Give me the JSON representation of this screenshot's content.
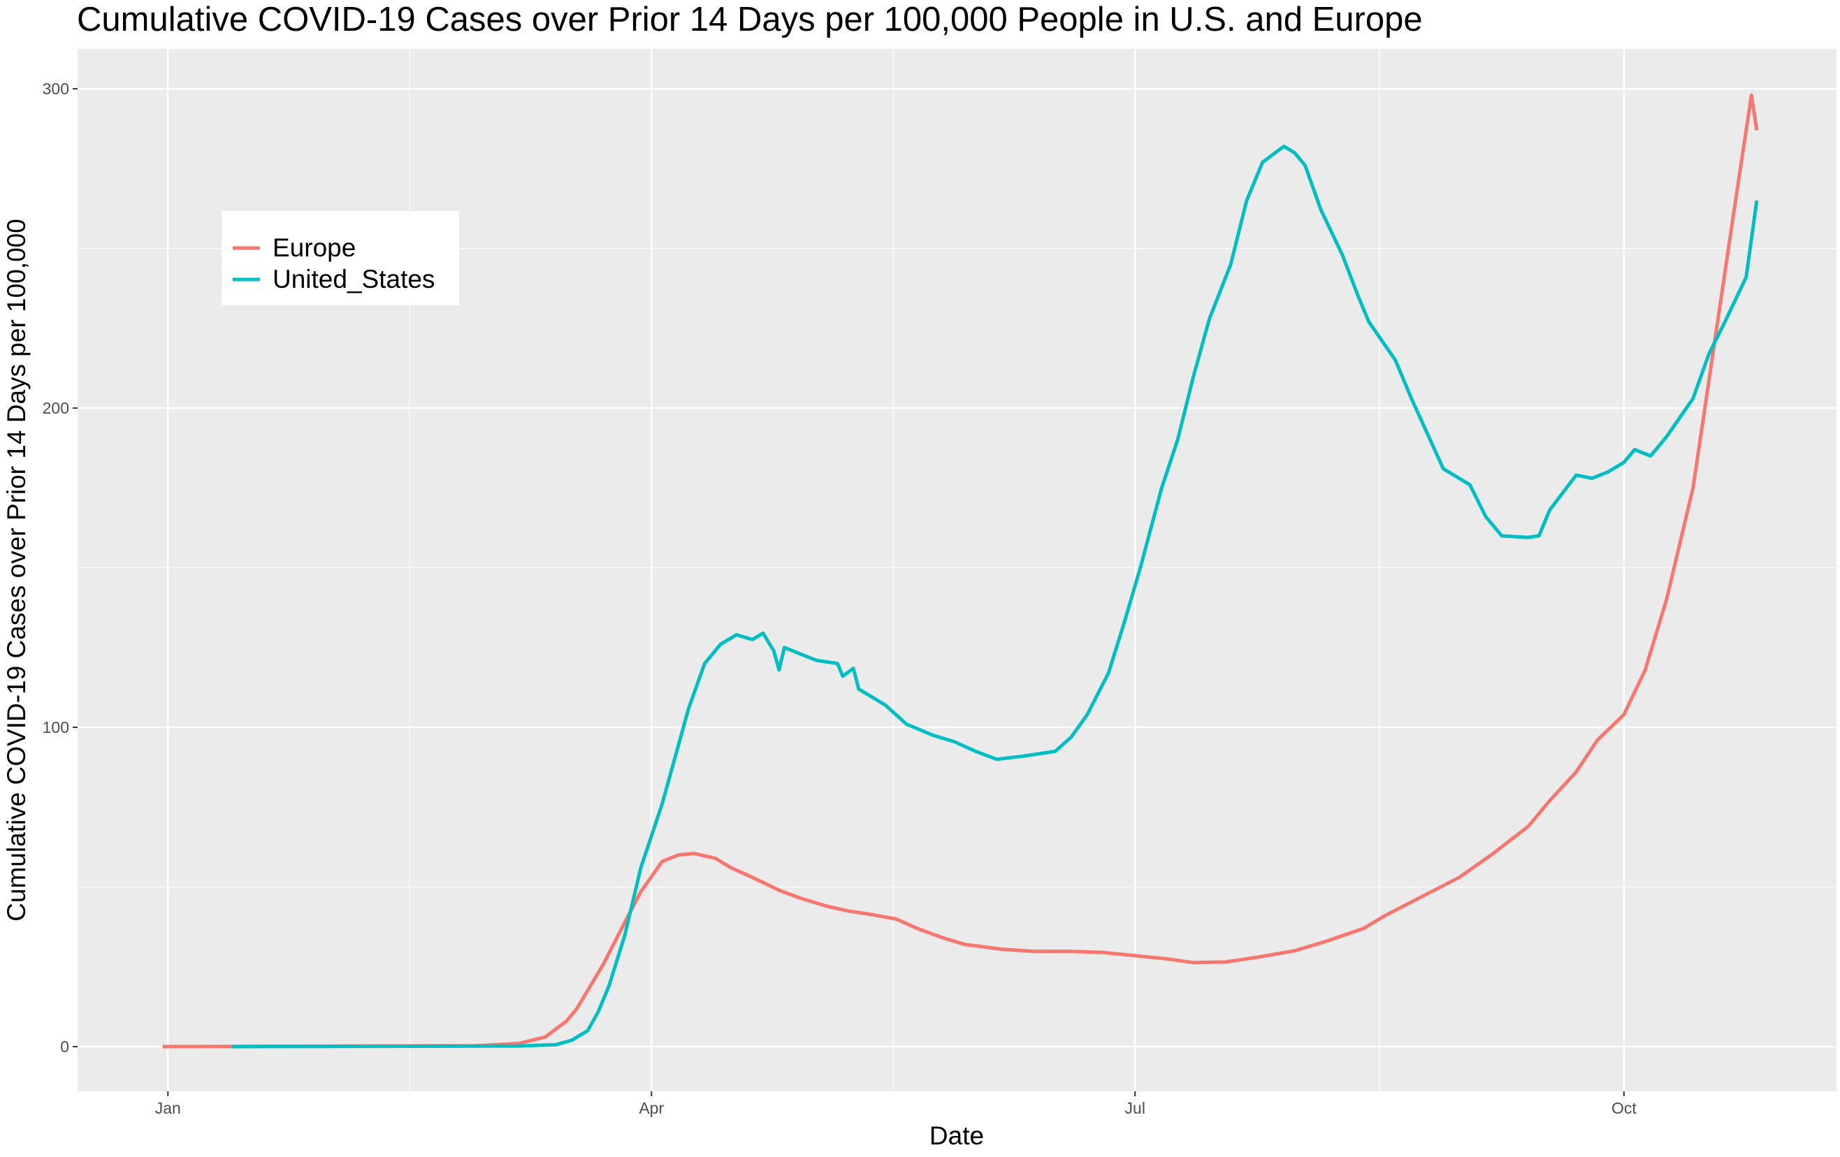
{
  "chart_data": {
    "type": "line",
    "title": "Cumulative COVID-19 Cases over Prior 14 Days per 100,000 People in U.S. and Europe",
    "xlabel": "Date",
    "ylabel": "Cumulative COVID-19 Cases over Prior 14 Days per 100,000",
    "x_ticks": [
      {
        "date": "2020-01-01",
        "label": "Jan"
      },
      {
        "date": "2020-04-01",
        "label": "Apr"
      },
      {
        "date": "2020-07-01",
        "label": "Jul"
      },
      {
        "date": "2020-10-01",
        "label": "Oct"
      }
    ],
    "y_ticks": [
      0,
      100,
      200,
      300
    ],
    "xlim": [
      "2019-12-15",
      "2020-11-10"
    ],
    "ylim": [
      -14,
      312.5
    ],
    "grid": true,
    "legend_position": "top-left (inside)",
    "background": "#EBEBEB",
    "series": [
      {
        "name": "Europe",
        "color": "#F8766D",
        "points": [
          [
            "2019-12-31",
            0
          ],
          [
            "2020-02-28",
            0.3
          ],
          [
            "2020-03-07",
            1
          ],
          [
            "2020-03-12",
            3
          ],
          [
            "2020-03-16",
            8
          ],
          [
            "2020-03-18",
            12
          ],
          [
            "2020-03-23",
            26
          ],
          [
            "2020-03-27",
            39
          ],
          [
            "2020-03-30",
            48.5
          ],
          [
            "2020-04-03",
            58
          ],
          [
            "2020-04-06",
            60
          ],
          [
            "2020-04-09",
            60.5
          ],
          [
            "2020-04-13",
            59
          ],
          [
            "2020-04-16",
            56
          ],
          [
            "2020-04-20",
            53
          ],
          [
            "2020-04-25",
            49
          ],
          [
            "2020-04-29",
            46.5
          ],
          [
            "2020-05-04",
            44
          ],
          [
            "2020-05-08",
            42.5
          ],
          [
            "2020-05-12",
            41.5
          ],
          [
            "2020-05-17",
            40
          ],
          [
            "2020-05-21",
            37
          ],
          [
            "2020-05-26",
            34
          ],
          [
            "2020-05-30",
            32
          ],
          [
            "2020-06-06",
            30.5
          ],
          [
            "2020-06-12",
            29.8
          ],
          [
            "2020-06-19",
            29.8
          ],
          [
            "2020-06-25",
            29.5
          ],
          [
            "2020-07-01",
            28.5
          ],
          [
            "2020-07-07",
            27.5
          ],
          [
            "2020-07-12",
            26.3
          ],
          [
            "2020-07-18",
            26.5
          ],
          [
            "2020-07-24",
            28
          ],
          [
            "2020-07-31",
            30
          ],
          [
            "2020-08-06",
            33
          ],
          [
            "2020-08-13",
            37
          ],
          [
            "2020-08-17",
            41
          ],
          [
            "2020-08-24",
            47
          ],
          [
            "2020-08-31",
            53
          ],
          [
            "2020-09-06",
            60
          ],
          [
            "2020-09-13",
            69
          ],
          [
            "2020-09-17",
            77
          ],
          [
            "2020-09-22",
            86
          ],
          [
            "2020-09-26",
            96
          ],
          [
            "2020-10-01",
            104
          ],
          [
            "2020-10-05",
            118
          ],
          [
            "2020-10-09",
            140
          ],
          [
            "2020-10-14",
            175
          ],
          [
            "2020-10-18",
            220
          ],
          [
            "2020-10-22",
            265
          ],
          [
            "2020-10-25",
            298
          ],
          [
            "2020-10-26",
            287
          ]
        ]
      },
      {
        "name": "United_States",
        "color": "#00BFC4",
        "points": [
          [
            "2020-01-13",
            0
          ],
          [
            "2020-03-07",
            0.2
          ],
          [
            "2020-03-14",
            0.6
          ],
          [
            "2020-03-17",
            2
          ],
          [
            "2020-03-20",
            5
          ],
          [
            "2020-03-22",
            11
          ],
          [
            "2020-03-24",
            19
          ],
          [
            "2020-03-27",
            35
          ],
          [
            "2020-03-30",
            56
          ],
          [
            "2020-04-03",
            76
          ],
          [
            "2020-04-05",
            88
          ],
          [
            "2020-04-08",
            106
          ],
          [
            "2020-04-11",
            120
          ],
          [
            "2020-04-14",
            126
          ],
          [
            "2020-04-17",
            129
          ],
          [
            "2020-04-20",
            127.5
          ],
          [
            "2020-04-22",
            129.5
          ],
          [
            "2020-04-24",
            124
          ],
          [
            "2020-04-25",
            118
          ],
          [
            "2020-04-26",
            125
          ],
          [
            "2020-05-02",
            121
          ],
          [
            "2020-05-06",
            120
          ],
          [
            "2020-05-07",
            116
          ],
          [
            "2020-05-09",
            118.5
          ],
          [
            "2020-05-10",
            112
          ],
          [
            "2020-05-15",
            107
          ],
          [
            "2020-05-19",
            101
          ],
          [
            "2020-05-24",
            97.5
          ],
          [
            "2020-05-28",
            95.5
          ],
          [
            "2020-06-01",
            92.5
          ],
          [
            "2020-06-05",
            90
          ],
          [
            "2020-06-10",
            91
          ],
          [
            "2020-06-16",
            92.5
          ],
          [
            "2020-06-19",
            97
          ],
          [
            "2020-06-22",
            104
          ],
          [
            "2020-06-26",
            117
          ],
          [
            "2020-06-29",
            133
          ],
          [
            "2020-07-02",
            150
          ],
          [
            "2020-07-06",
            175
          ],
          [
            "2020-07-09",
            190
          ],
          [
            "2020-07-12",
            210
          ],
          [
            "2020-07-15",
            228
          ],
          [
            "2020-07-19",
            245
          ],
          [
            "2020-07-22",
            265
          ],
          [
            "2020-07-25",
            277
          ],
          [
            "2020-07-29",
            282
          ],
          [
            "2020-07-31",
            280
          ],
          [
            "2020-08-02",
            276
          ],
          [
            "2020-08-05",
            262
          ],
          [
            "2020-08-09",
            248
          ],
          [
            "2020-08-12",
            235
          ],
          [
            "2020-08-14",
            227
          ],
          [
            "2020-08-19",
            215
          ],
          [
            "2020-08-22",
            203
          ],
          [
            "2020-08-25",
            192
          ],
          [
            "2020-08-28",
            181
          ],
          [
            "2020-09-02",
            176
          ],
          [
            "2020-09-05",
            166
          ],
          [
            "2020-09-08",
            160
          ],
          [
            "2020-09-13",
            159.5
          ],
          [
            "2020-09-15",
            160
          ],
          [
            "2020-09-17",
            168
          ],
          [
            "2020-09-22",
            179
          ],
          [
            "2020-09-25",
            178
          ],
          [
            "2020-09-28",
            180
          ],
          [
            "2020-10-01",
            183
          ],
          [
            "2020-10-03",
            187
          ],
          [
            "2020-10-06",
            185
          ],
          [
            "2020-10-09",
            191
          ],
          [
            "2020-10-14",
            203
          ],
          [
            "2020-10-17",
            217
          ],
          [
            "2020-10-20",
            227
          ],
          [
            "2020-10-24",
            241
          ],
          [
            "2020-10-26",
            265
          ]
        ]
      }
    ]
  }
}
